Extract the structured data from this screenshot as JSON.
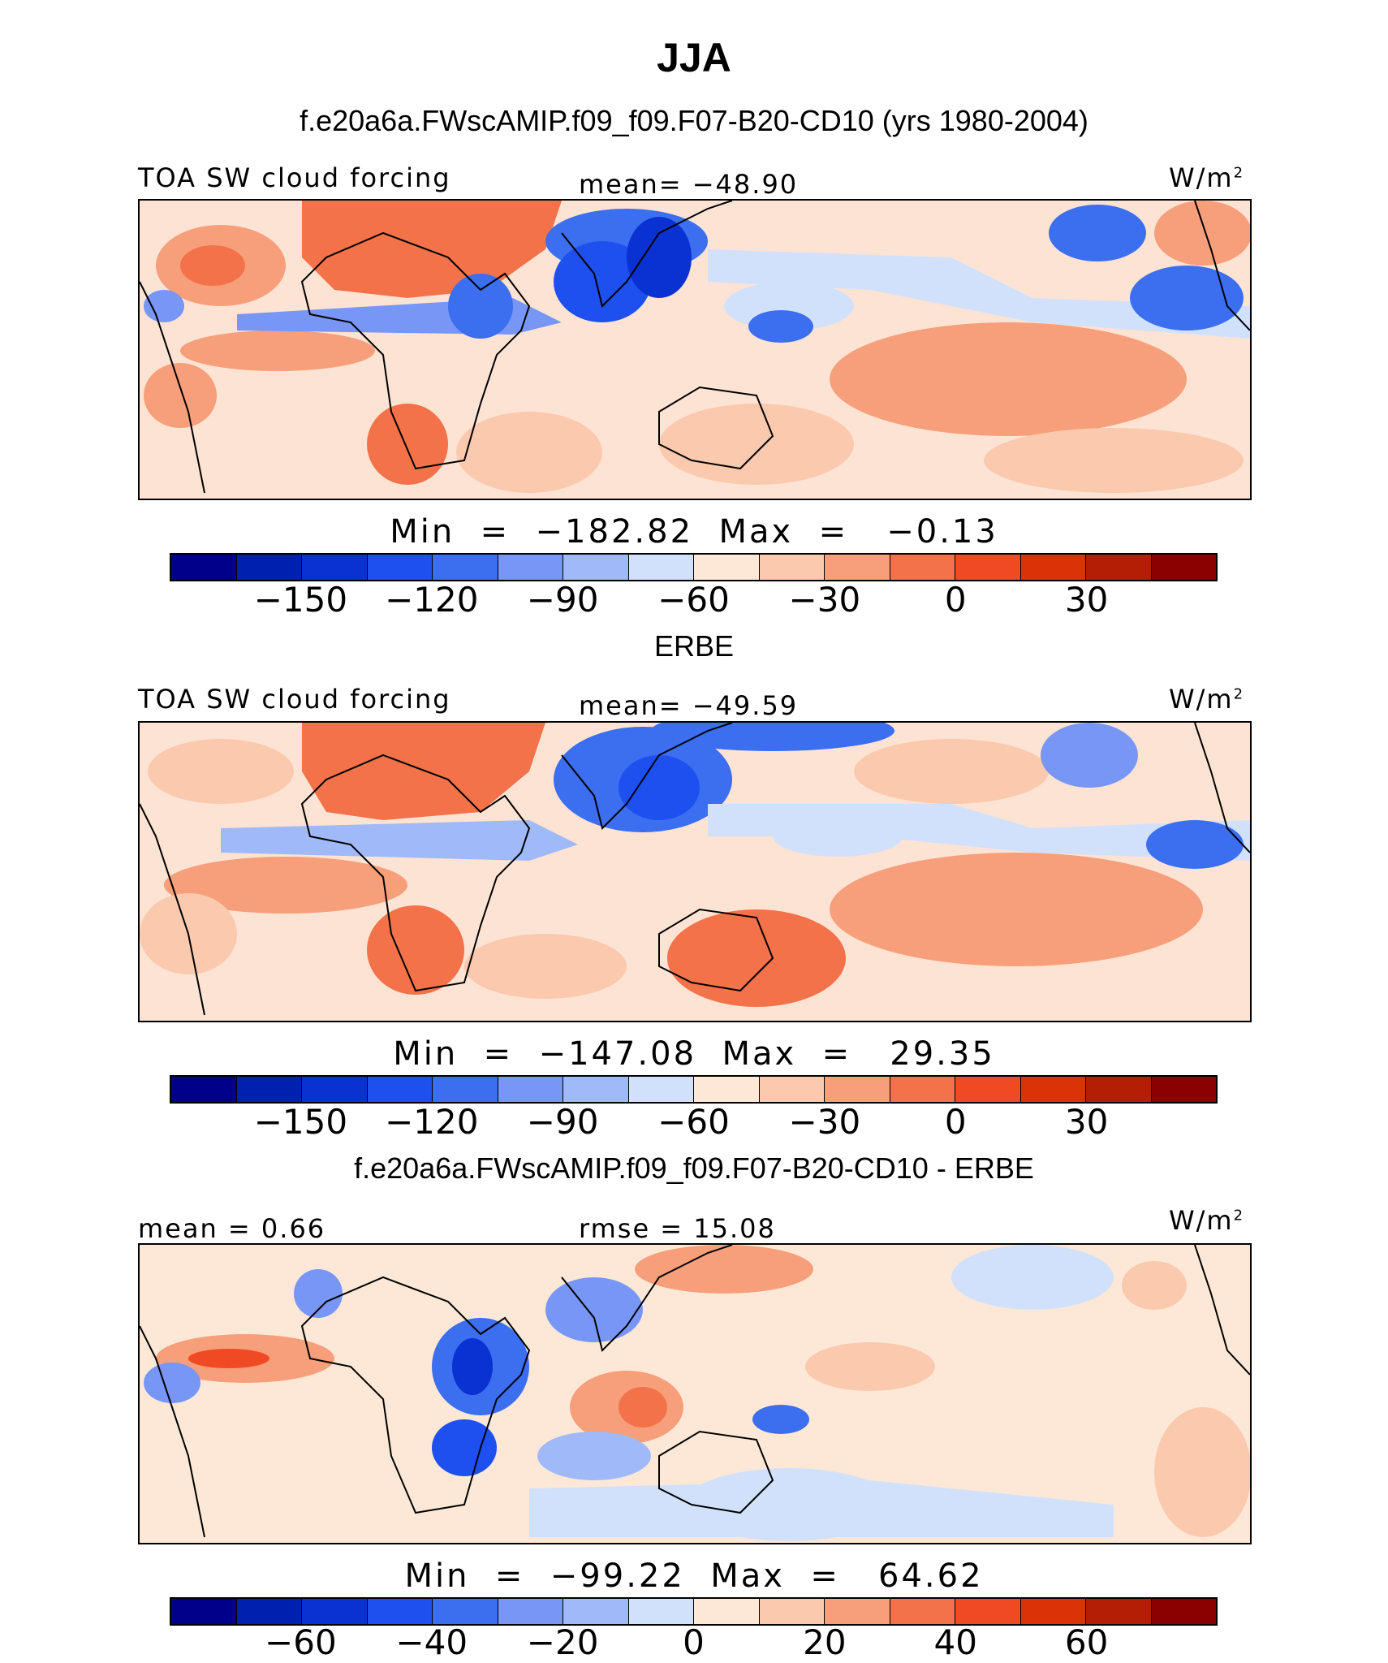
{
  "figure": {
    "season": "JJA",
    "case_title": "f.e20a6a.FWscAMIP.f09_f09.F07-B20-CD10 (yrs 1980-2004)",
    "obs_title": "ERBE",
    "diff_title": "f.e20a6a.FWscAMIP.f09_f09.F07-B20-CD10 - ERBE"
  },
  "panels": {
    "model": {
      "left_label": "TOA SW cloud forcing",
      "center_label": "mean= −48.90",
      "unit": "W/m",
      "unit_sup": "2",
      "minmax": "Min  =  −182.82  Max  =   −0.13"
    },
    "obs": {
      "left_label": "TOA SW cloud forcing",
      "center_label": "mean= −49.59",
      "unit": "W/m",
      "unit_sup": "2",
      "minmax": "Min  =  −147.08  Max  =   29.35"
    },
    "diff": {
      "left_label": "mean  =    0.66",
      "center_label": "rmse  =   15.08",
      "unit": "W/m",
      "unit_sup": "2",
      "minmax": "Min  =  −99.22  Max  =   64.62"
    }
  },
  "colorbars": {
    "main": {
      "colors": [
        "#00008b",
        "#0020b0",
        "#0a32d2",
        "#1e50f0",
        "#3c6ef0",
        "#7896f5",
        "#a0b9f8",
        "#d2e1fb",
        "#fde8d7",
        "#fbc9ae",
        "#f79f7a",
        "#f3724a",
        "#f04a24",
        "#dc3208",
        "#b41e05",
        "#8b0000"
      ],
      "ticks": [
        "−150",
        "−120",
        "−90",
        "−60",
        "−30",
        "0",
        "30"
      ]
    },
    "diff": {
      "colors": [
        "#00008b",
        "#0020b0",
        "#0a32d2",
        "#1e50f0",
        "#3c6ef0",
        "#7896f5",
        "#a0b9f8",
        "#d2e1fb",
        "#fde8d7",
        "#fbc9ae",
        "#f79f7a",
        "#f3724a",
        "#f04a24",
        "#dc3208",
        "#b41e05",
        "#8b0000"
      ],
      "ticks": [
        "−60",
        "−40",
        "−20",
        "0",
        "20",
        "40",
        "60"
      ]
    }
  }
}
